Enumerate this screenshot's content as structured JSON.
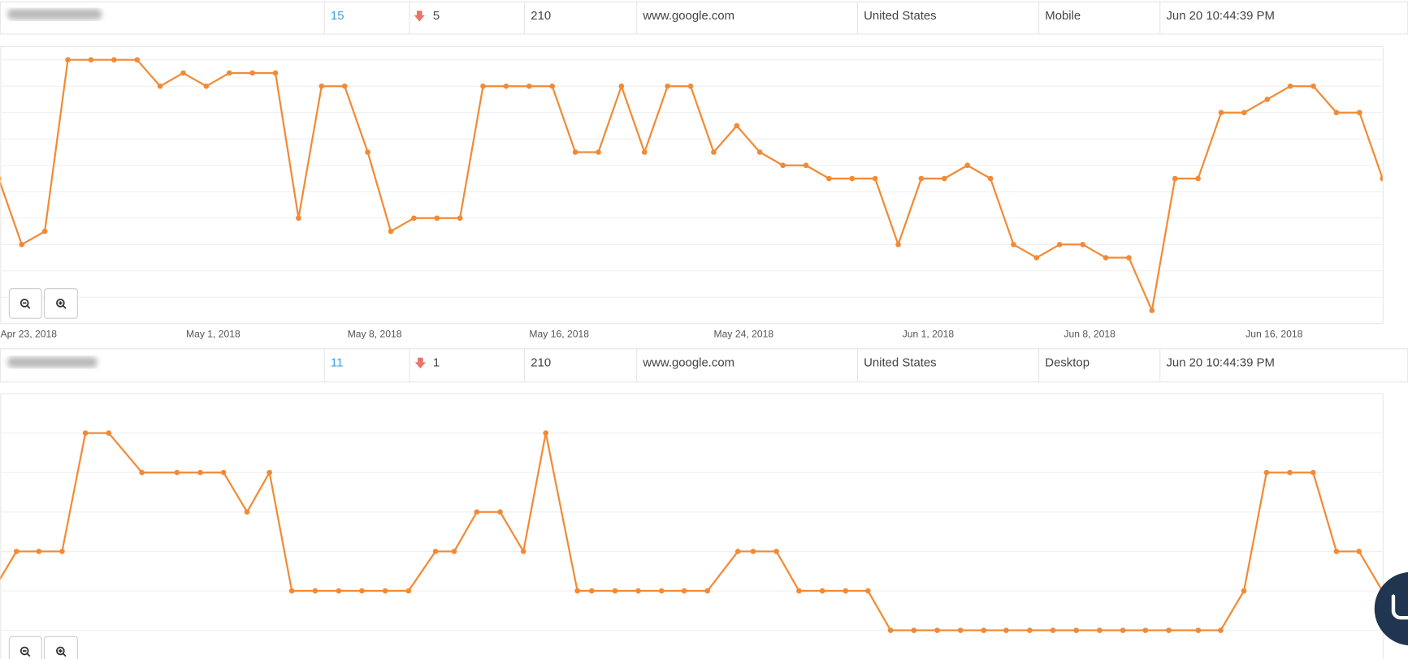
{
  "rows": [
    {
      "rank": "15",
      "change": "5",
      "volume": "210",
      "engine": "www.google.com",
      "location": "United States",
      "device": "Mobile",
      "updated": "Jun 20 10:44:39 PM"
    },
    {
      "rank": "11",
      "change": "1",
      "volume": "210",
      "engine": "www.google.com",
      "location": "United States",
      "device": "Desktop",
      "updated": "Jun 20 10:44:39 PM"
    }
  ],
  "chart_data": [
    {
      "type": "line",
      "color": "#f28a35",
      "grid": true,
      "y_reversed": true,
      "xlim": [
        -0.93,
        59
      ],
      "ylim": [
        5,
        26
      ],
      "yticks": [
        6,
        8,
        10,
        12,
        14,
        16,
        18,
        20,
        22,
        24
      ],
      "xticks": [
        {
          "value": 0.3,
          "label": "Apr 23, 2018"
        },
        {
          "value": 8.3,
          "label": "May 1, 2018"
        },
        {
          "value": 15.3,
          "label": "May 8, 2018"
        },
        {
          "value": 23.3,
          "label": "May 16, 2018"
        },
        {
          "value": 31.3,
          "label": "May 24, 2018"
        },
        {
          "value": 39.3,
          "label": "Jun 1, 2018"
        },
        {
          "value": 46.3,
          "label": "Jun 8, 2018"
        },
        {
          "value": 54.3,
          "label": "Jun 16, 2018"
        }
      ],
      "x": [
        -1,
        0,
        1,
        2,
        3,
        4,
        5,
        6,
        7,
        8,
        9,
        10,
        11,
        12,
        13,
        14,
        15,
        16,
        17,
        18,
        19,
        20,
        21,
        22,
        23,
        24,
        25,
        26,
        27,
        28,
        29,
        30,
        31,
        32,
        33,
        34,
        35,
        36,
        37,
        38,
        39,
        40,
        41,
        42,
        43,
        44,
        45,
        46,
        47,
        48,
        49,
        50,
        51,
        52,
        53,
        54,
        55,
        56,
        57,
        58,
        59
      ],
      "values": [
        15,
        20,
        19,
        6,
        6,
        6,
        6,
        8,
        7,
        8,
        7,
        7,
        7,
        18,
        8,
        8,
        13,
        19,
        18,
        18,
        18,
        8,
        8,
        8,
        8,
        13,
        13,
        8,
        13,
        8,
        8,
        13,
        11,
        13,
        14,
        14,
        15,
        15,
        15,
        20,
        15,
        15,
        14,
        15,
        20,
        21,
        20,
        20,
        21,
        21,
        25,
        15,
        15,
        10,
        10,
        9,
        8,
        8,
        10,
        10,
        15
      ]
    },
    {
      "type": "line",
      "color": "#f28a35",
      "grid": true,
      "y_reversed": true,
      "xlim": [
        -0.93,
        59
      ],
      "ylim": [
        6,
        13
      ],
      "yticks": [
        7,
        8,
        9,
        10,
        11,
        12
      ],
      "x": [
        -1.25,
        -0.23,
        0.74,
        1.75,
        2.76,
        3.77,
        5.21,
        6.73,
        7.74,
        8.75,
        9.77,
        10.74,
        11.71,
        12.72,
        13.74,
        14.75,
        15.76,
        16.77,
        17.94,
        18.75,
        19.73,
        20.74,
        21.75,
        22.72,
        24.09,
        24.71,
        25.72,
        26.73,
        27.74,
        28.72,
        29.73,
        31.05,
        31.71,
        32.72,
        33.7,
        34.71,
        35.72,
        36.69,
        37.67,
        38.68,
        39.69,
        40.7,
        41.71,
        42.68,
        43.7,
        44.71,
        45.72,
        46.73,
        47.74,
        48.72,
        49.73,
        51.01,
        51.98,
        52.99,
        53.97,
        54.98,
        55.99,
        57.0,
        57.98,
        58.99
      ],
      "values": [
        11,
        10,
        10,
        10,
        7,
        7,
        8,
        8,
        8,
        8,
        9,
        8,
        11,
        11,
        11,
        11,
        11,
        11,
        10,
        10,
        9,
        9,
        10,
        7,
        11,
        11,
        11,
        11,
        11,
        11,
        11,
        10,
        10,
        10,
        11,
        11,
        11,
        11,
        12,
        12,
        12,
        12,
        12,
        12,
        12,
        12,
        12,
        12,
        12,
        12,
        12,
        12,
        12,
        11,
        8,
        8,
        8,
        10,
        10,
        11
      ]
    }
  ]
}
